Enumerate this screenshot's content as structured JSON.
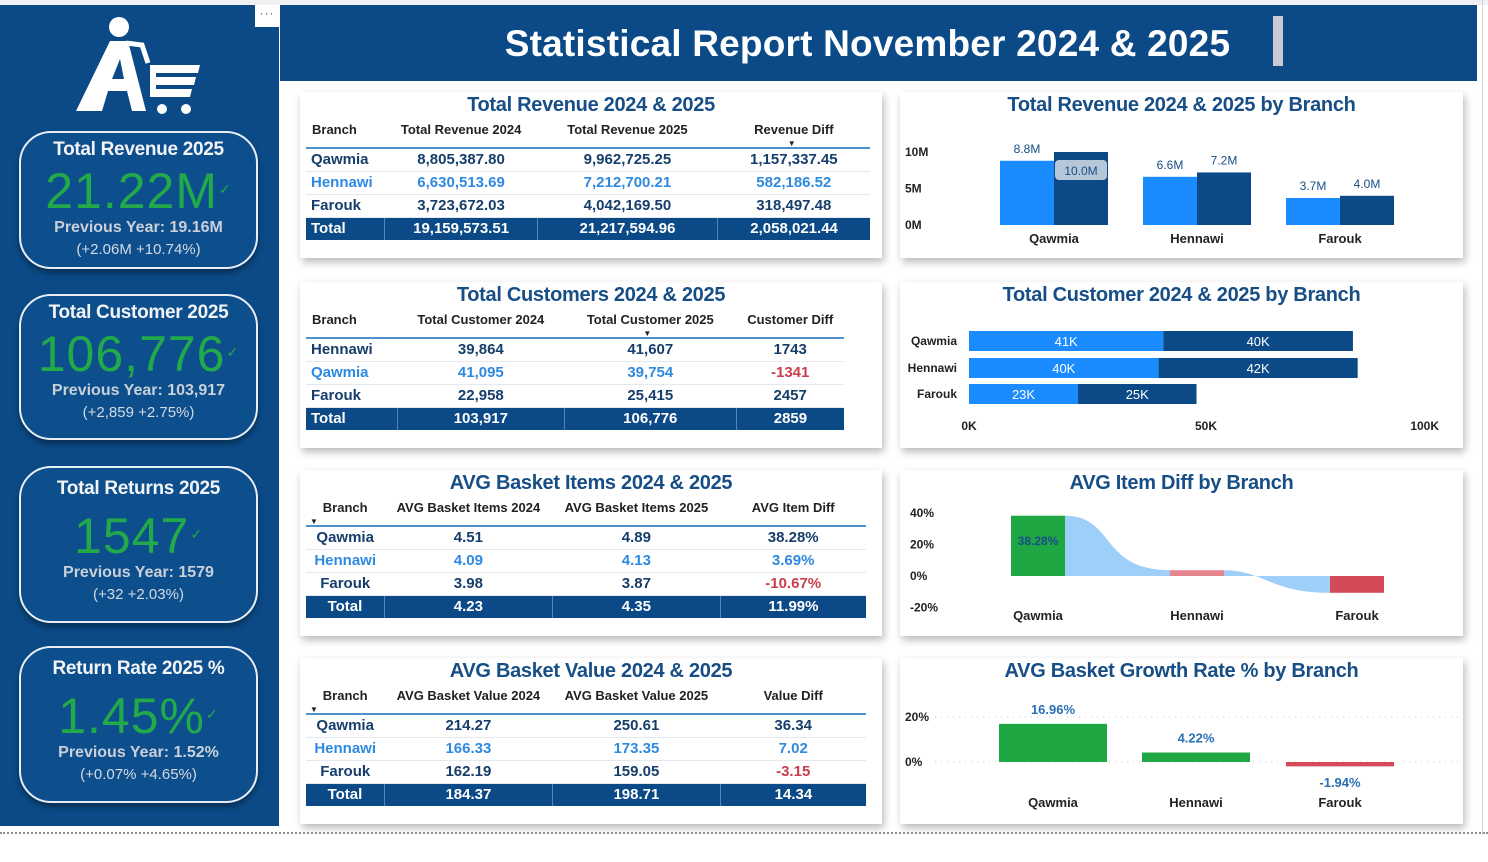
{
  "header": {
    "title": "Statistical Report November 2024 & 2025"
  },
  "sidebar": {
    "more_label": "···",
    "logo": "cart-person-logo",
    "kpis": [
      {
        "title": "Total Revenue 2025",
        "value": "21.22M",
        "status_icon": "check-icon",
        "previous": "Previous Year: 19.16M",
        "delta": "(+2.06M +10.74%)"
      },
      {
        "title": "Total Customer 2025",
        "value": "106,776",
        "status_icon": "check-icon",
        "previous": "Previous Year: 103,917",
        "delta": "(+2,859 +2.75%)"
      },
      {
        "title": "Total Returns 2025",
        "value": "1547",
        "status_icon": "check-icon",
        "previous": "Previous Year: 1579",
        "delta": "(+32 +2.03%)"
      },
      {
        "title": "Return Rate 2025 %",
        "value": "1.45%",
        "status_icon": "check-icon",
        "previous": "Previous Year: 1.52%",
        "delta": "(+0.07% +4.65%)"
      }
    ]
  },
  "tables": [
    {
      "title": "Total Revenue 2024 & 2025",
      "columns": [
        "Branch",
        "Total Revenue 2024",
        "Total Revenue 2025",
        "Revenue Diff"
      ],
      "sorted_column": 3,
      "rows": [
        [
          "Qawmia",
          "8,805,387.80",
          "9,962,725.25",
          "1,157,337.45"
        ],
        [
          "Hennawi",
          "6,630,513.69",
          "7,212,700.21",
          "582,186.52"
        ],
        [
          "Farouk",
          "3,723,672.03",
          "4,042,169.50",
          "318,497.48"
        ]
      ],
      "total": [
        "Total",
        "19,159,573.51",
        "21,217,594.96",
        "2,058,021.44"
      ]
    },
    {
      "title": "Total Customers 2024 & 2025",
      "columns": [
        "Branch",
        "Total Customer 2024",
        "Total Customer 2025",
        "Customer Diff"
      ],
      "sorted_column": 2,
      "rows": [
        [
          "Hennawi",
          "39,864",
          "41,607",
          "1743"
        ],
        [
          "Qawmia",
          "41,095",
          "39,754",
          "-1341"
        ],
        [
          "Farouk",
          "22,958",
          "25,415",
          "2457"
        ]
      ],
      "total": [
        "Total",
        "103,917",
        "106,776",
        "2859"
      ]
    },
    {
      "title": "AVG Basket Items 2024 & 2025",
      "columns": [
        "Branch",
        "AVG Basket Items 2024",
        "AVG Basket Items 2025",
        "AVG Item Diff"
      ],
      "sorted_column": 0,
      "rows": [
        [
          "Qawmia",
          "4.51",
          "4.89",
          "38.28%"
        ],
        [
          "Hennawi",
          "4.09",
          "4.13",
          "3.69%"
        ],
        [
          "Farouk",
          "3.98",
          "3.87",
          "-10.67%"
        ]
      ],
      "total": [
        "Total",
        "4.23",
        "4.35",
        "11.99%"
      ]
    },
    {
      "title": "AVG Basket Value 2024 & 2025",
      "columns": [
        "Branch",
        "AVG Basket Value 2024",
        "AVG Basket Value 2025",
        "Value Diff"
      ],
      "sorted_column": 0,
      "rows": [
        [
          "Qawmia",
          "214.27",
          "250.61",
          "36.34"
        ],
        [
          "Hennawi",
          "166.33",
          "173.35",
          "7.02"
        ],
        [
          "Farouk",
          "162.19",
          "159.05",
          "-3.15"
        ]
      ],
      "total": [
        "Total",
        "184.37",
        "198.71",
        "14.34"
      ]
    }
  ],
  "colors": {
    "navy": "#0b4a86",
    "bright_blue": "#1a8cff",
    "light_blue": "#9ecff8",
    "green": "#1fa744",
    "red": "#d54a58",
    "pink": "#e8868f",
    "title_blue": "#174e86"
  },
  "chart_data": [
    {
      "type": "bar",
      "title": "Total Revenue 2024 & 2025 by Branch",
      "categories": [
        "Qawmia",
        "Hennawi",
        "Farouk"
      ],
      "series": [
        {
          "name": "Total Revenue 2024",
          "values": [
            8.8,
            6.6,
            3.7
          ],
          "labels": [
            "8.8M",
            "6.6M",
            "3.7M"
          ]
        },
        {
          "name": "Total Revenue 2025",
          "values": [
            10.0,
            7.2,
            4.0
          ],
          "labels": [
            "10.0M",
            "7.2M",
            "4.0M"
          ]
        }
      ],
      "yticks": [
        "0M",
        "5M",
        "10M"
      ],
      "ylim": [
        0,
        10
      ],
      "grid": false
    },
    {
      "type": "bar",
      "orientation": "horizontal-stacked",
      "title": "Total Customer 2024 & 2025 by Branch",
      "categories": [
        "Qawmia",
        "Hennawi",
        "Farouk"
      ],
      "series": [
        {
          "name": "Total Customer 2024",
          "values": [
            41,
            40,
            23
          ],
          "labels": [
            "41K",
            "40K",
            "23K"
          ]
        },
        {
          "name": "Total Customer 2025",
          "values": [
            40,
            42,
            25
          ],
          "labels": [
            "40K",
            "42K",
            "25K"
          ]
        }
      ],
      "xticks": [
        "0K",
        "50K",
        "100K"
      ],
      "xlim": [
        0,
        100
      ],
      "grid": false
    },
    {
      "type": "area",
      "subtype": "ribbon-bar",
      "title": "AVG Item Diff by Branch",
      "categories": [
        "Qawmia",
        "Hennawi",
        "Farouk"
      ],
      "values": [
        38.28,
        3.69,
        -10.67
      ],
      "labels": [
        "38.28%",
        "",
        ""
      ],
      "yticks": [
        "-20%",
        "0%",
        "20%",
        "40%"
      ],
      "ylim": [
        -20,
        40
      ],
      "grid": false
    },
    {
      "type": "bar",
      "title": "AVG Basket Growth Rate % by Branch",
      "categories": [
        "Qawmia",
        "Hennawi",
        "Farouk"
      ],
      "values": [
        16.96,
        4.22,
        -1.94
      ],
      "labels": [
        "16.96%",
        "4.22%",
        "-1.94%"
      ],
      "yticks": [
        "0%",
        "20%"
      ],
      "ylim": [
        -5,
        20
      ],
      "grid": true
    }
  ]
}
